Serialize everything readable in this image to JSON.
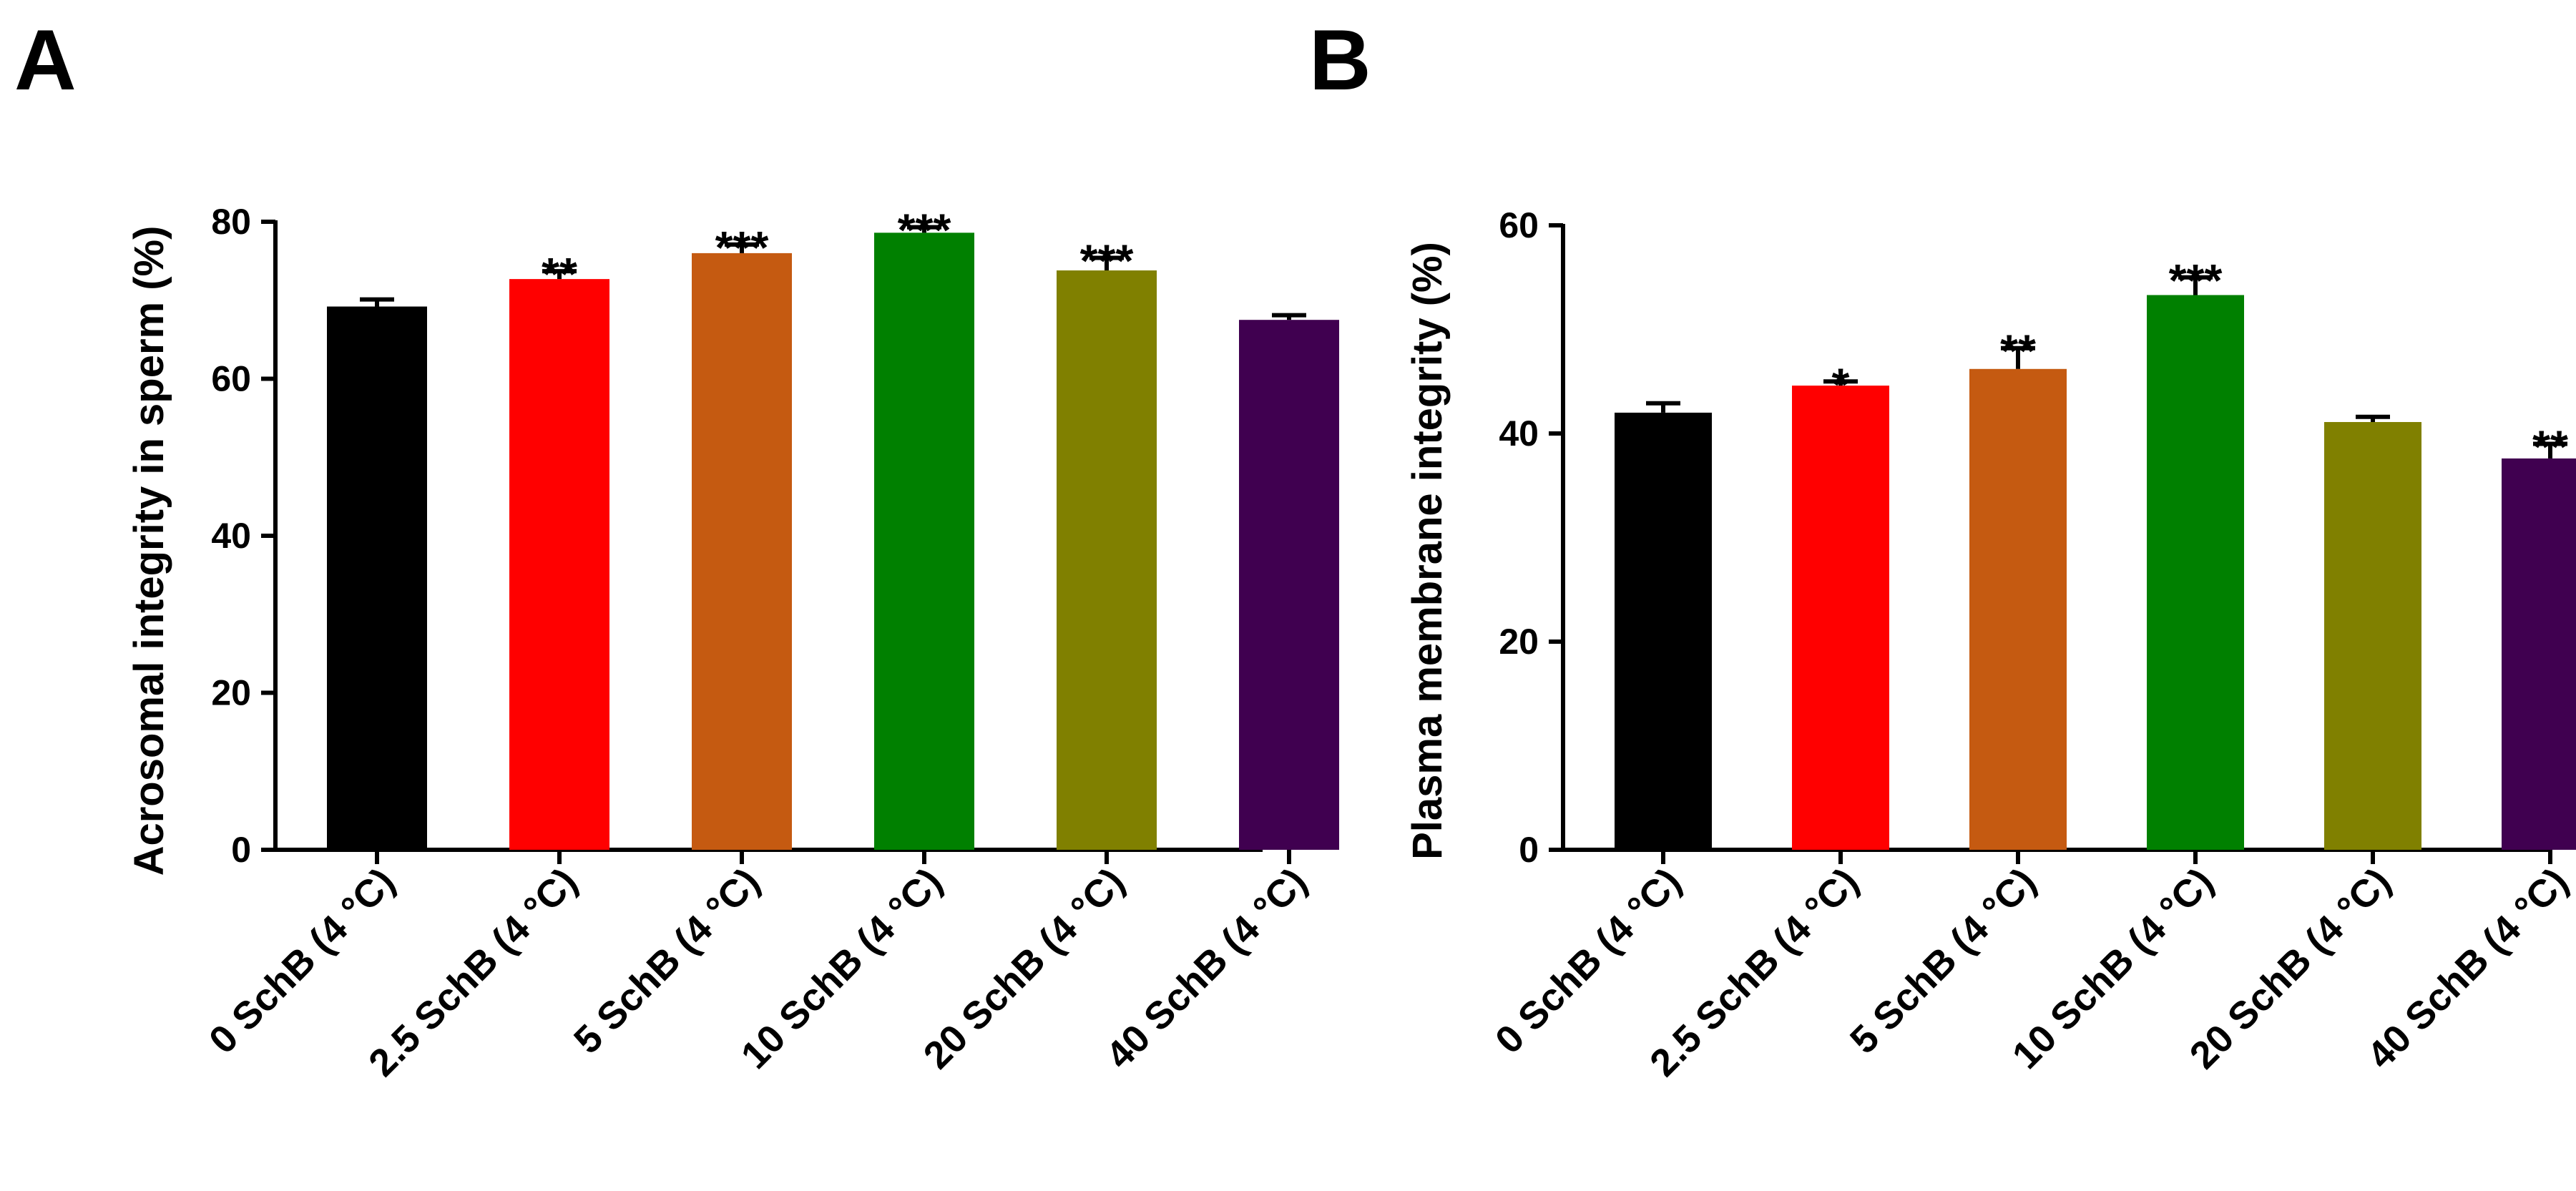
{
  "chart_data": [
    {
      "panel": "A",
      "type": "bar",
      "ylabel": "Acrosomal integrity in sperm (%)",
      "xlabel": "",
      "ylim": [
        0,
        80
      ],
      "yticks": [
        0,
        20,
        40,
        60,
        80
      ],
      "categories": [
        "0 SchB (4 °C)",
        "2.5 SchB (4 °C)",
        "5 SchB (4 °C)",
        "10 SchB (4 °C)",
        "20 SchB (4 °C)",
        "40 SchB (4 °C)"
      ],
      "values": [
        69.2,
        72.7,
        76.0,
        78.6,
        73.8,
        67.5
      ],
      "errors": [
        0.9,
        1.0,
        1.1,
        0.7,
        1.6,
        0.6
      ],
      "significance": [
        "",
        "**",
        "***",
        "***",
        "***",
        ""
      ],
      "colors": [
        "#000000",
        "#ff0000",
        "#c55a11",
        "#008000",
        "#808000",
        "#400050"
      ]
    },
    {
      "panel": "B",
      "type": "bar",
      "ylabel": "Plasma membrane integrity (%)",
      "xlabel": "",
      "ylim": [
        0,
        60
      ],
      "yticks": [
        0,
        20,
        40,
        60
      ],
      "categories": [
        "0 SchB (4 °C)",
        "2.5 SchB (4 °C)",
        "5 SchB (4 °C)",
        "10 SchB (4 °C)",
        "20 SchB (4 °C)",
        "40 SchB (4 °C)"
      ],
      "values": [
        42.0,
        44.6,
        46.2,
        53.3,
        41.1,
        37.6
      ],
      "errors": [
        0.9,
        0.4,
        2.0,
        1.7,
        0.5,
        1.4
      ],
      "significance": [
        "",
        "*",
        "**",
        "***",
        "",
        "**"
      ],
      "colors": [
        "#000000",
        "#ff0000",
        "#c55a11",
        "#008000",
        "#808000",
        "#400050"
      ]
    }
  ]
}
